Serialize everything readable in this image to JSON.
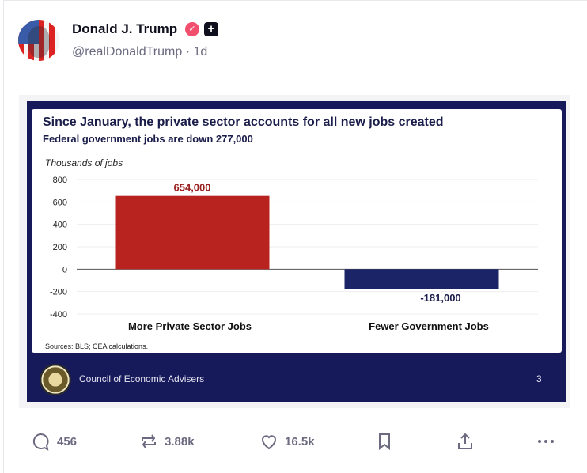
{
  "post": {
    "author_name": "Donald J. Trump",
    "handle": "@realDonaldTrump",
    "time": "1d",
    "verified_icon": "verified-badge-icon",
    "badge_icon": "plus-badge-icon"
  },
  "image": {
    "title": "Since January, the private sector accounts for all new jobs created",
    "subtitle": "Federal government jobs are down 277,000",
    "sources": "Sources: BLS; CEA calculations.",
    "footer_org": "Council of Economic Advisers",
    "page_number": "3"
  },
  "chart_data": {
    "type": "bar",
    "title": "Since January, the private sector accounts for all new jobs created",
    "subtitle": "Federal government jobs are down 277,000",
    "ylabel": "Thousands of jobs",
    "categories": [
      "More Private Sector Jobs",
      "Fewer Government Jobs"
    ],
    "values": [
      654,
      -181
    ],
    "data_labels": [
      "654,000",
      "-181,000"
    ],
    "colors": [
      "#b8231f",
      "#1a2466"
    ],
    "ylim": [
      -400,
      800
    ],
    "yticks": [
      "800",
      "600",
      "400",
      "200",
      "0",
      "-200",
      "-400"
    ],
    "grid": true
  },
  "actions": {
    "replies": "456",
    "reposts": "3.88k",
    "likes": "16.5k"
  }
}
